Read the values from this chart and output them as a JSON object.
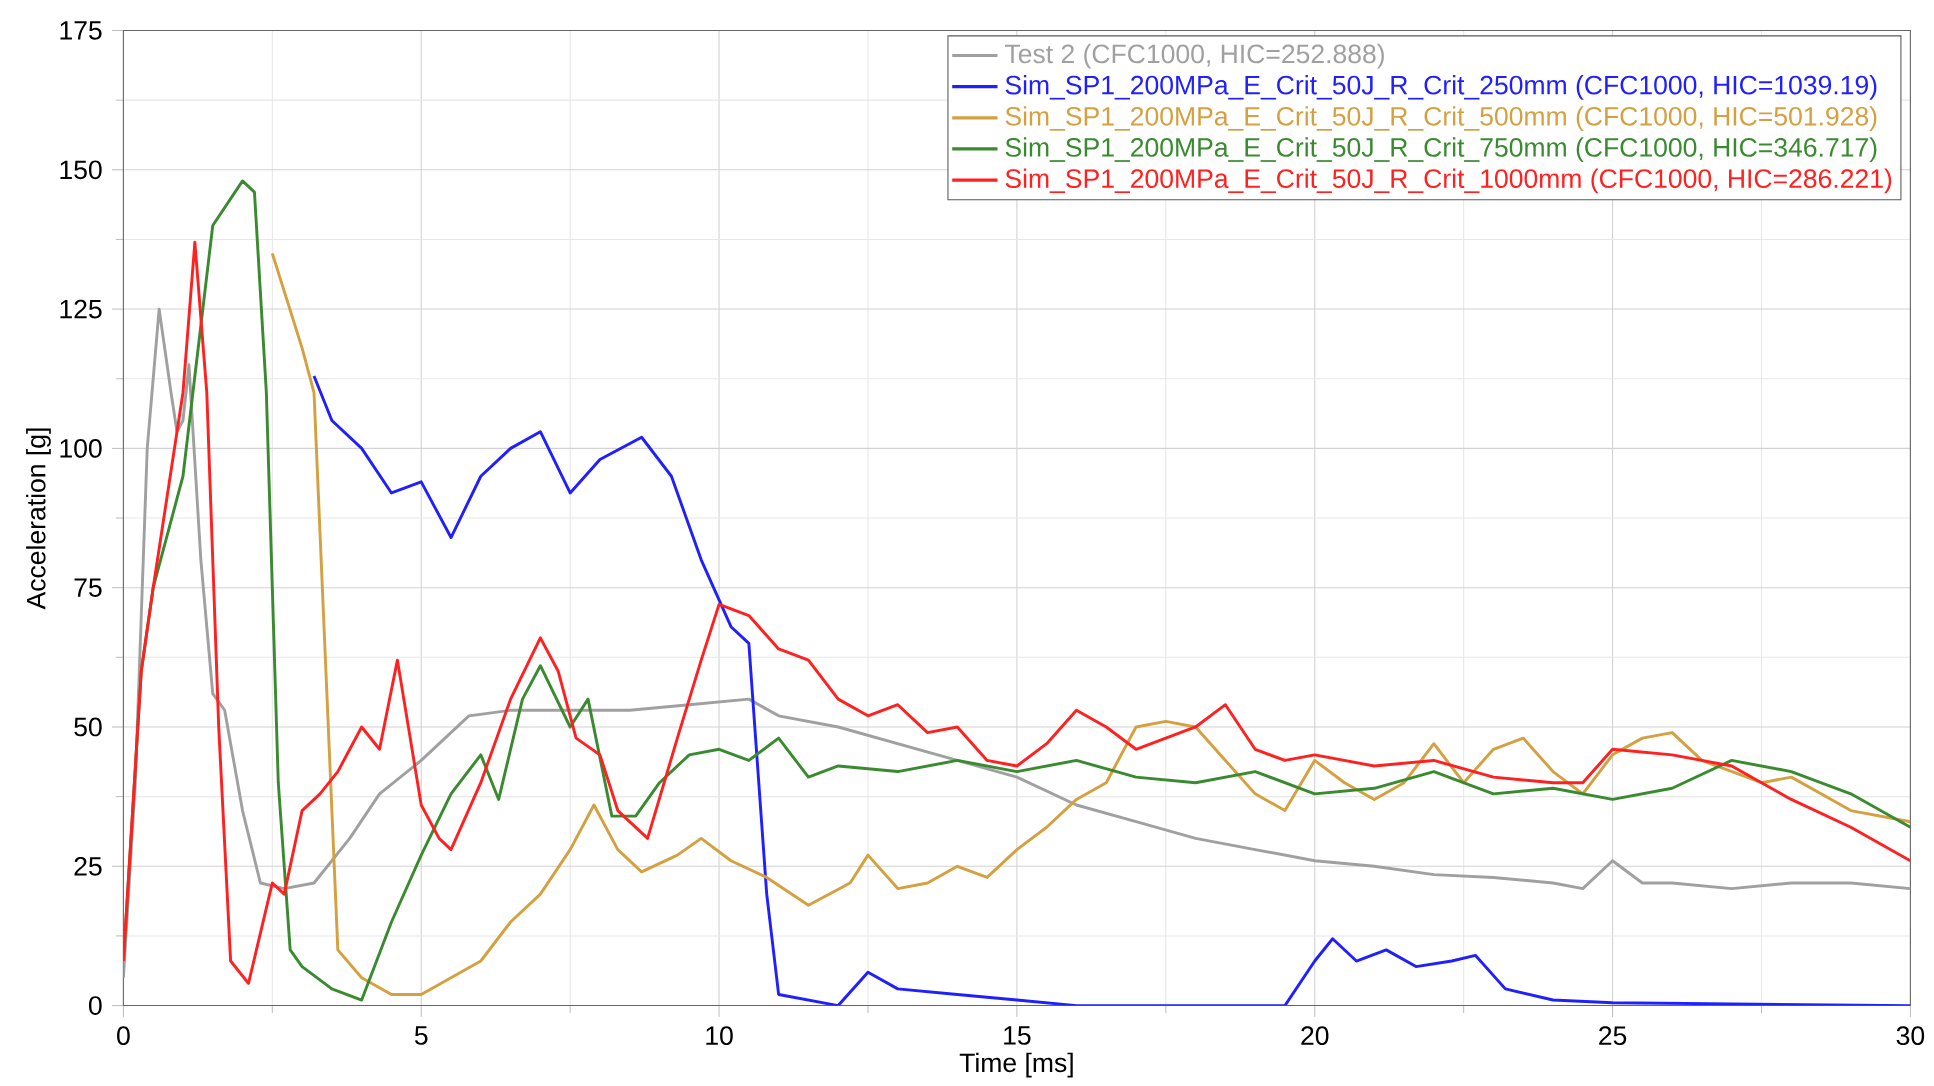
{
  "chart_data": {
    "type": "line",
    "xlabel": "Time [ms]",
    "ylabel": "Acceleration [g]",
    "xlim": [
      0,
      30
    ],
    "ylim": [
      0,
      175
    ],
    "xticks": [
      0,
      5,
      10,
      15,
      20,
      25,
      30
    ],
    "yticks": [
      0,
      25,
      50,
      75,
      100,
      125,
      150,
      175
    ],
    "grid": true,
    "legend": "top right",
    "marker": "none",
    "line_style": "solid",
    "series": [
      {
        "name": "Test 2 (CFC1000, HIC=252.888)",
        "color": "#a0a0a0",
        "x": [
          0,
          0.2,
          0.4,
          0.6,
          0.8,
          0.9,
          1.0,
          1.1,
          1.3,
          1.5,
          1.7,
          2.0,
          2.3,
          2.7,
          3.2,
          3.8,
          4.3,
          5,
          5.8,
          6.5,
          7.5,
          8.5,
          9.5,
          10.5,
          11,
          12,
          13,
          14,
          15,
          16,
          17,
          18,
          19,
          20,
          21,
          22,
          23,
          24,
          24.5,
          25,
          25.5,
          26,
          27,
          28,
          29,
          30
        ],
        "values": [
          5,
          40,
          100,
          125,
          110,
          103,
          105,
          115,
          80,
          56,
          53,
          35,
          22,
          21,
          22,
          30,
          38,
          44,
          52,
          53,
          53,
          53,
          54,
          55,
          52,
          50,
          47,
          44,
          41,
          36,
          33,
          30,
          28,
          26,
          25,
          23.5,
          23,
          22,
          21,
          26,
          22,
          22,
          21,
          22,
          22,
          21
        ]
      },
      {
        "name": "Sim_SP1_200MPa_E_Crit_50J_R_Crit_250mm (CFC1000, HIC=1039.19)",
        "color": "#2020ff",
        "x": [
          3.2,
          3.5,
          4,
          4.5,
          5,
          5.5,
          6,
          6.5,
          7,
          7.5,
          8,
          8.7,
          9.2,
          9.7,
          10.2,
          10.5,
          10.8,
          11,
          12,
          12.5,
          13,
          14,
          15,
          16,
          19.5,
          20,
          20.3,
          20.7,
          21.2,
          21.7,
          22.3,
          22.7,
          23.2,
          24,
          25,
          30
        ],
        "values": [
          113,
          105,
          100,
          92,
          94,
          84,
          95,
          100,
          103,
          92,
          98,
          102,
          95,
          80,
          68,
          65,
          20,
          2,
          0,
          6,
          3,
          2,
          1,
          0,
          0,
          8,
          12,
          8,
          10,
          7,
          8,
          9,
          3,
          1,
          0.5,
          0
        ]
      },
      {
        "name": "Sim_SP1_200MPa_E_Crit_50J_R_Crit_500mm (CFC1000, HIC=501.928)",
        "color": "#d4a040",
        "x": [
          2.5,
          3,
          3.2,
          3.4,
          3.6,
          4,
          4.5,
          5,
          5.5,
          6,
          6.5,
          7,
          7.5,
          7.9,
          8.3,
          8.7,
          9.3,
          9.7,
          10.2,
          10.8,
          11.5,
          12.2,
          12.5,
          13,
          13.5,
          14,
          14.5,
          15,
          15.5,
          16,
          16.5,
          17,
          17.5,
          18,
          18.5,
          19,
          19.5,
          20,
          20.5,
          21,
          21.5,
          22,
          22.5,
          23,
          23.5,
          24,
          24.5,
          25,
          25.5,
          26,
          26.5,
          27,
          27.5,
          28,
          28.5,
          29,
          30
        ],
        "values": [
          135,
          118,
          110,
          60,
          10,
          5,
          2,
          2,
          5,
          8,
          15,
          20,
          28,
          36,
          28,
          24,
          27,
          30,
          26,
          23,
          18,
          22,
          27,
          21,
          22,
          25,
          23,
          28,
          32,
          37,
          40,
          50,
          51,
          50,
          44,
          38,
          35,
          44,
          40,
          37,
          40,
          47,
          40,
          46,
          48,
          42,
          38,
          45,
          48,
          49,
          44,
          42,
          40,
          41,
          38,
          35,
          33
        ]
      },
      {
        "name": "Sim_SP1_200MPa_E_Crit_50J_R_Crit_750mm (CFC1000, HIC=346.717)",
        "color": "#3a8a30",
        "x": [
          0,
          0.3,
          0.5,
          1,
          1.5,
          2,
          2.2,
          2.4,
          2.6,
          2.8,
          3,
          3.5,
          4,
          4.5,
          5,
          5.5,
          6,
          6.3,
          6.7,
          7,
          7.5,
          7.8,
          8.2,
          8.6,
          9,
          9.5,
          10,
          10.5,
          11,
          11.5,
          12,
          13,
          14,
          15,
          16,
          17,
          18,
          19,
          20,
          21,
          22,
          23,
          24,
          25,
          26,
          27,
          28,
          29,
          30
        ],
        "values": [
          8,
          60,
          75,
          95,
          140,
          148,
          146,
          110,
          40,
          10,
          7,
          3,
          1,
          15,
          27,
          38,
          45,
          37,
          55,
          61,
          50,
          55,
          34,
          34,
          40,
          45,
          46,
          44,
          48,
          41,
          43,
          42,
          44,
          42,
          44,
          41,
          40,
          42,
          38,
          39,
          42,
          38,
          39,
          37,
          39,
          44,
          42,
          38,
          32
        ]
      },
      {
        "name": "Sim_SP1_200MPa_E_Crit_50J_R_Crit_1000mm (CFC1000, HIC=286.221)",
        "color": "#ff2020",
        "x": [
          0,
          0.3,
          0.5,
          1,
          1.2,
          1.4,
          1.6,
          1.8,
          2.1,
          2.5,
          2.7,
          3,
          3.3,
          3.6,
          4,
          4.3,
          4.6,
          5,
          5.3,
          5.5,
          6,
          6.5,
          7,
          7.3,
          7.6,
          8,
          8.3,
          8.8,
          9.3,
          9.7,
          10,
          10.5,
          11,
          11.5,
          12,
          12.5,
          13,
          13.5,
          14,
          14.5,
          15,
          15.5,
          16,
          16.5,
          17,
          17.5,
          18,
          18.5,
          19,
          19.5,
          20,
          21,
          22,
          23,
          24,
          24.5,
          25,
          26,
          27,
          28,
          29,
          30
        ],
        "values": [
          8,
          60,
          75,
          110,
          137,
          110,
          50,
          8,
          4,
          22,
          20,
          35,
          38,
          42,
          50,
          46,
          62,
          36,
          30,
          28,
          40,
          55,
          66,
          60,
          48,
          45,
          35,
          30,
          48,
          62,
          72,
          70,
          64,
          62,
          55,
          52,
          54,
          49,
          50,
          44,
          43,
          47,
          53,
          50,
          46,
          48,
          50,
          54,
          46,
          44,
          45,
          43,
          44,
          41,
          40,
          40,
          46,
          45,
          43,
          37,
          32,
          26
        ]
      }
    ]
  }
}
